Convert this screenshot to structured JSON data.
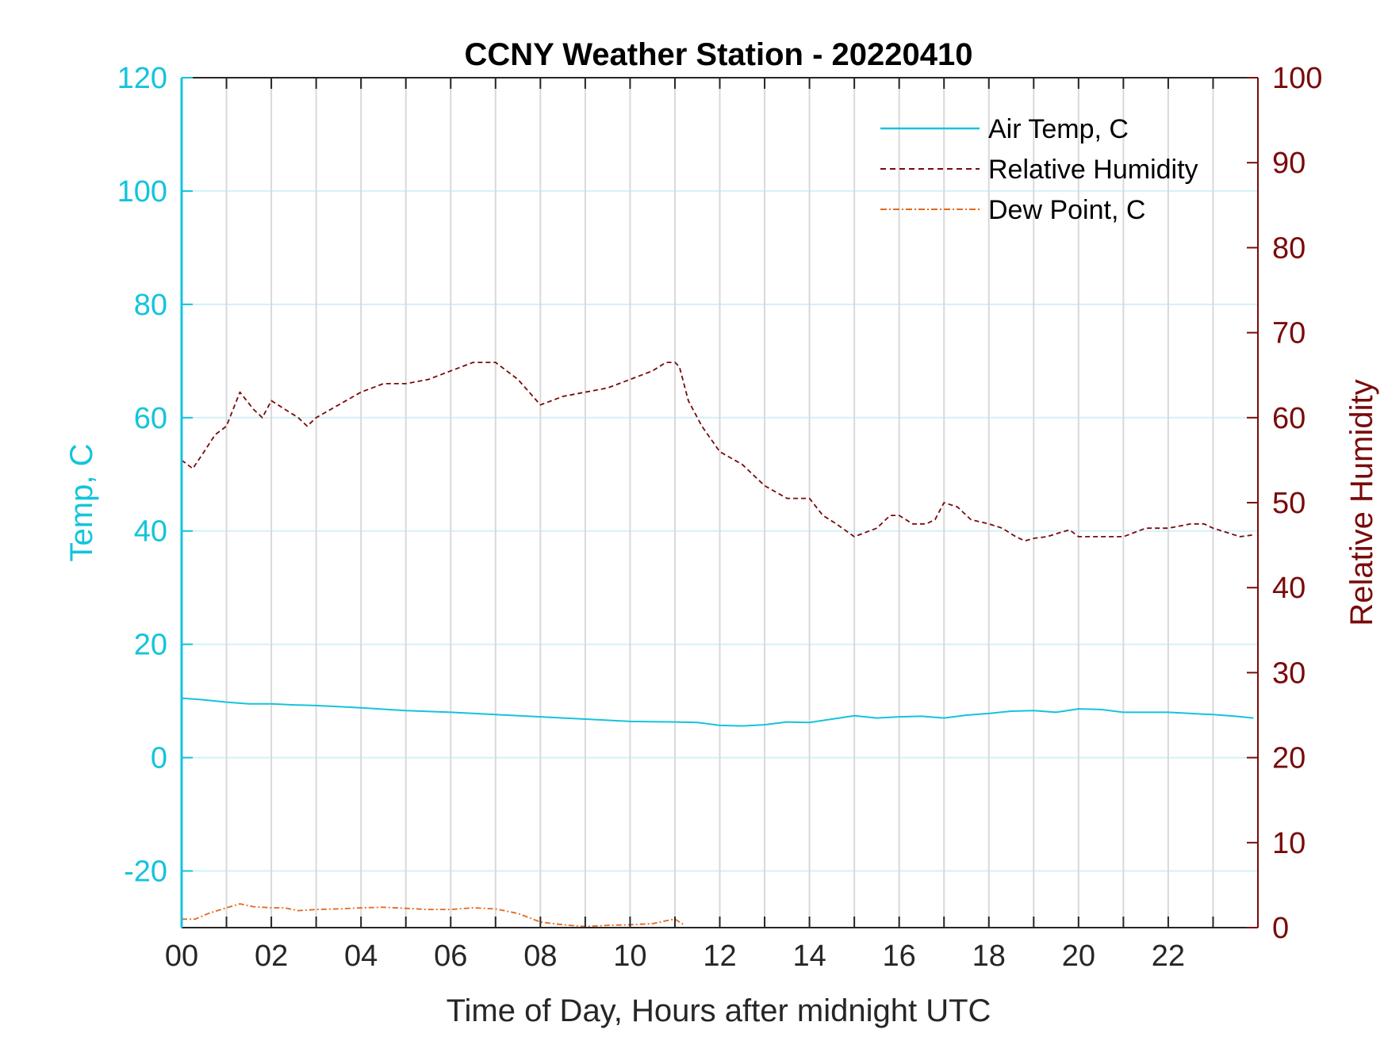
{
  "chart_data": {
    "type": "line",
    "title": "CCNY Weather Station - 20220410",
    "xlabel": "Time of Day, Hours after midnight UTC",
    "ylabel_left": "Temp, C",
    "ylabel_right": "Relative Humidity",
    "xlim": [
      0,
      24
    ],
    "ylim_left": [
      -30,
      120
    ],
    "ylim_right": [
      0,
      100
    ],
    "x_ticks": [
      0,
      2,
      4,
      6,
      8,
      10,
      12,
      14,
      16,
      18,
      20,
      22
    ],
    "x_tick_labels": [
      "00",
      "02",
      "04",
      "06",
      "08",
      "10",
      "12",
      "14",
      "16",
      "18",
      "20",
      "22"
    ],
    "y_left_ticks": [
      -20,
      0,
      20,
      40,
      60,
      80,
      100,
      120
    ],
    "y_left_tick_labels": [
      "-20",
      "0",
      "20",
      "40",
      "60",
      "80",
      "100",
      "120"
    ],
    "y_right_ticks": [
      0,
      10,
      20,
      30,
      40,
      50,
      60,
      70,
      80,
      90,
      100
    ],
    "y_right_tick_labels": [
      "0",
      "10",
      "20",
      "30",
      "40",
      "50",
      "60",
      "70",
      "80",
      "90",
      "100"
    ],
    "grid": "vertical every hour, horizontal at left ticks",
    "legend_position": "top-right",
    "series": [
      {
        "name": "Air Temp, C",
        "axis": "left",
        "color": "#13c4dc",
        "style": "solid",
        "x": [
          0,
          0.5,
          1,
          1.5,
          2,
          2.5,
          3,
          3.5,
          4,
          5,
          6,
          7,
          8,
          9,
          10,
          11,
          11.5,
          12,
          12.5,
          13,
          13.5,
          14,
          14.5,
          15,
          15.5,
          16,
          16.5,
          17,
          17.5,
          18,
          18.5,
          19,
          19.5,
          20,
          20.5,
          21,
          21.5,
          22,
          22.5,
          23,
          23.5,
          23.9
        ],
        "y": [
          10.5,
          10.2,
          9.8,
          9.5,
          9.5,
          9.3,
          9.2,
          9.0,
          8.8,
          8.3,
          8.0,
          7.6,
          7.2,
          6.8,
          6.4,
          6.3,
          6.2,
          5.7,
          5.6,
          5.8,
          6.3,
          6.2,
          6.8,
          7.4,
          7.0,
          7.2,
          7.3,
          7.0,
          7.5,
          7.8,
          8.2,
          8.3,
          8.0,
          8.6,
          8.5,
          8.0,
          8.0,
          8.0,
          7.8,
          7.6,
          7.3,
          7.0
        ]
      },
      {
        "name": "Relative Humidity",
        "axis": "right",
        "color": "#7a0a0a",
        "style": "dashed",
        "x": [
          0,
          0.25,
          0.5,
          0.75,
          1,
          1.3,
          1.6,
          1.8,
          2.0,
          2.3,
          2.6,
          2.8,
          3.0,
          3.5,
          4.0,
          4.5,
          5.0,
          5.5,
          6.0,
          6.5,
          7.0,
          7.5,
          8.0,
          8.25,
          8.5,
          9.0,
          9.5,
          10.0,
          10.5,
          10.8,
          11.0,
          11.1,
          11.3,
          11.6,
          12.0,
          12.5,
          13.0,
          13.5,
          14.0,
          14.3,
          14.6,
          15.0,
          15.5,
          15.8,
          16.0,
          16.3,
          16.6,
          16.8,
          17.0,
          17.3,
          17.6,
          18.0,
          18.3,
          18.6,
          18.8,
          19.0,
          19.3,
          19.6,
          19.8,
          20.0,
          20.5,
          21.0,
          21.5,
          22.0,
          22.5,
          22.8,
          23.0,
          23.3,
          23.6,
          23.9
        ],
        "y": [
          55,
          54,
          56,
          58,
          59,
          63,
          61,
          60,
          62,
          61,
          60,
          59,
          60,
          61.5,
          63,
          64,
          64,
          64.5,
          65.5,
          66.5,
          66.5,
          64.5,
          61.5,
          62,
          62.5,
          63,
          63.5,
          64.5,
          65.5,
          66.5,
          66.5,
          66,
          62,
          59,
          56,
          54.5,
          52,
          50.5,
          50.5,
          48.5,
          47.5,
          46,
          47,
          48.5,
          48.5,
          47.5,
          47.5,
          48,
          50,
          49.5,
          48,
          47.5,
          47,
          46,
          45.5,
          45.8,
          46,
          46.5,
          46.8,
          46,
          46,
          46,
          47,
          47,
          47.5,
          47.5,
          47,
          46.5,
          46,
          46.2
        ]
      },
      {
        "name": "Dew Point, C",
        "axis": "left",
        "color": "#e06a1f",
        "style": "dash-dot",
        "x": [
          0,
          0.3,
          0.6,
          1.0,
          1.3,
          1.6,
          2.0,
          2.3,
          2.6,
          3.0,
          3.5,
          4.0,
          4.5,
          5.0,
          5.5,
          6.0,
          6.5,
          7.0,
          7.5,
          8.0,
          8.5,
          9.0,
          9.5,
          10.0,
          10.5,
          10.8,
          11.0,
          11.2
        ],
        "y": [
          -28.5,
          -28.5,
          -27.5,
          -26.5,
          -25.8,
          -26.3,
          -26.5,
          -26.5,
          -27,
          -26.8,
          -26.7,
          -26.5,
          -26.4,
          -26.6,
          -26.8,
          -26.8,
          -26.5,
          -26.7,
          -27.5,
          -29,
          -29.5,
          -29.8,
          -29.6,
          -29.5,
          -29.3,
          -28.8,
          -28.5,
          -29.5
        ]
      }
    ]
  }
}
